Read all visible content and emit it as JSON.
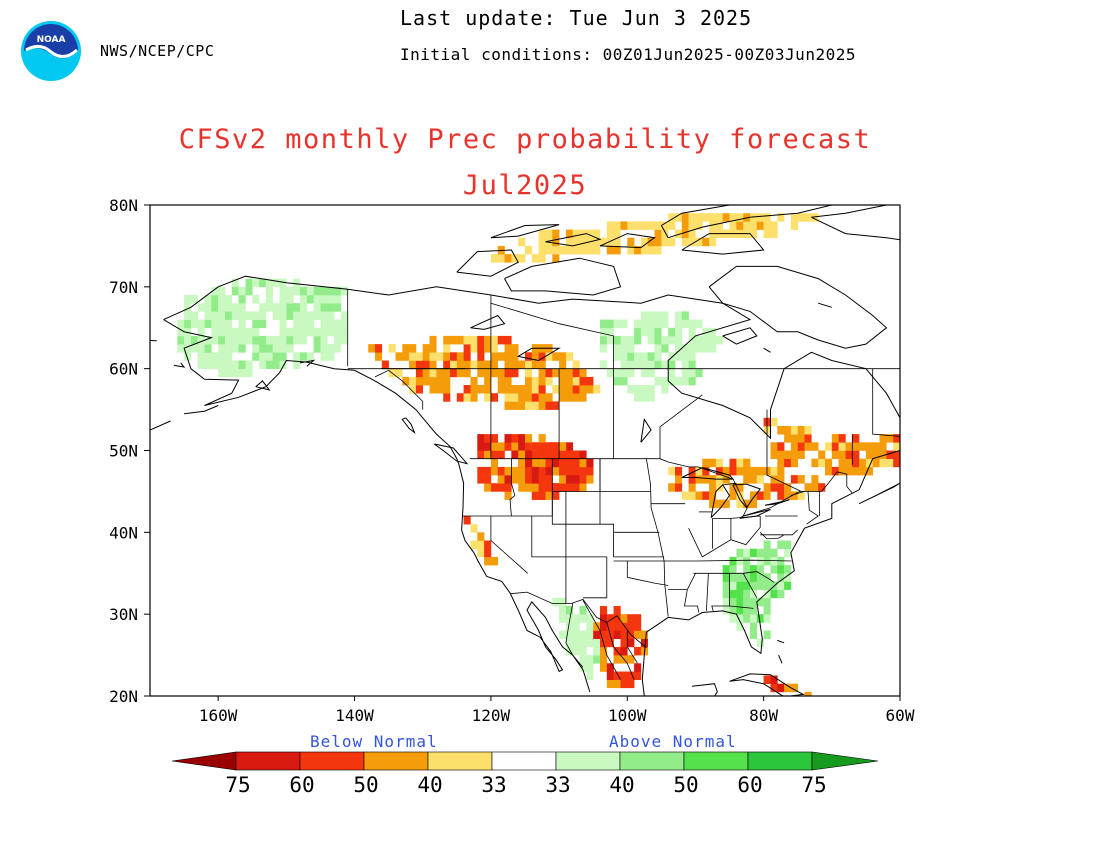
{
  "header": {
    "agency": "NWS/NCEP/CPC",
    "last_update": "Last update: Tue Jun 3 2025",
    "initial_conditions": "Initial conditions: 00Z01Jun2025-00Z03Jun2025"
  },
  "title": {
    "main": "CFSv2 monthly Prec probability forecast",
    "month": "Jul2025"
  },
  "logo": {
    "name": "noaa-logo",
    "text": "NOAA"
  },
  "colors": {
    "title": "#e8322b",
    "below_normal": [
      "#9b0000",
      "#d81a10",
      "#f4360f",
      "#f59c0a",
      "#fde06c"
    ],
    "near_normal": "#ffffff",
    "above_normal": [
      "#c9f8c1",
      "#93ec8a",
      "#53e24c",
      "#2cc63c",
      "#179b1e"
    ],
    "legend_text": "#3355dd"
  },
  "map": {
    "lat_labels": [
      "80N",
      "70N",
      "60N",
      "50N",
      "40N",
      "30N",
      "20N"
    ],
    "lon_labels": [
      "160W",
      "140W",
      "120W",
      "100W",
      "80W",
      "60W"
    ],
    "lat_range": [
      20,
      80
    ],
    "lon_range": [
      -170,
      -60
    ],
    "projection": "latitude-longitude"
  },
  "legend": {
    "below_label": "Below Normal",
    "above_label": "Above Normal",
    "tick_labels": [
      "75",
      "60",
      "50",
      "40",
      "33",
      "33",
      "40",
      "50",
      "60",
      "75"
    ]
  },
  "regions": [
    {
      "id": "alaska",
      "category": "above",
      "level": 1
    },
    {
      "id": "western-canada",
      "category": "below",
      "level": 2
    },
    {
      "id": "pacific-northwest-inland",
      "category": "below",
      "level": 3
    },
    {
      "id": "northern-rockies",
      "category": "below",
      "level": 3
    },
    {
      "id": "california-coast",
      "category": "below",
      "level": 2
    },
    {
      "id": "hudson-west",
      "category": "above",
      "level": 1
    },
    {
      "id": "great-lakes",
      "category": "below",
      "level": 2
    },
    {
      "id": "quebec-labrador",
      "category": "below",
      "level": 2
    },
    {
      "id": "southeast-us",
      "category": "above",
      "level": 2
    },
    {
      "id": "mexico-sierra-madre",
      "category": "above",
      "level": 1
    },
    {
      "id": "northeast-mexico",
      "category": "below",
      "level": 3
    },
    {
      "id": "cuba-caribbean",
      "category": "below",
      "level": 3
    },
    {
      "id": "arctic-islands",
      "category": "below",
      "level": 1
    }
  ]
}
